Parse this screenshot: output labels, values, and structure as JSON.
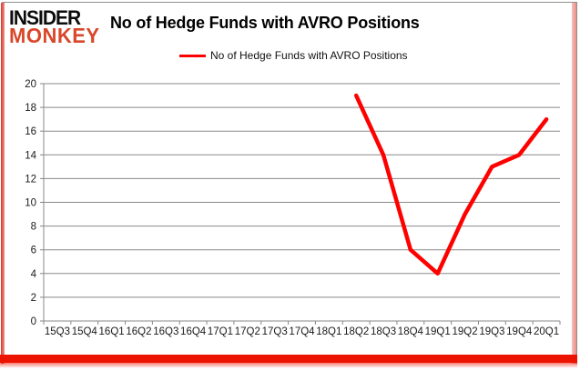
{
  "brand": {
    "line1": "INSIDER",
    "line2": "MONKEY"
  },
  "header": {
    "title": "No of Hedge Funds with AVRO Positions"
  },
  "legend": {
    "label": "No of Hedge Funds with AVRO Positions"
  },
  "colors": {
    "series_line": "#ff0000",
    "brand_accent": "#d9472b",
    "grid_line": "#898989",
    "axis_line": "#898989",
    "tick_text": "#1a1a1a",
    "border_bottom": "#ec1400"
  },
  "chart_data": {
    "type": "line",
    "title": "No of Hedge Funds with AVRO Positions",
    "xlabel": "",
    "ylabel": "",
    "categories": [
      "15Q3",
      "15Q4",
      "16Q1",
      "16Q2",
      "16Q3",
      "16Q4",
      "17Q1",
      "17Q2",
      "17Q3",
      "17Q4",
      "18Q1",
      "18Q2",
      "18Q3",
      "18Q4",
      "19Q1",
      "19Q2",
      "19Q3",
      "19Q4",
      "20Q1"
    ],
    "series": [
      {
        "name": "No of Hedge Funds with AVRO Positions",
        "values": [
          null,
          null,
          null,
          null,
          null,
          null,
          null,
          null,
          null,
          null,
          null,
          19,
          14,
          6,
          4,
          9,
          13,
          14,
          17
        ]
      }
    ],
    "ylim": [
      0,
      20
    ],
    "ytick_interval": 2,
    "grid": true,
    "legend_position": "top-center"
  }
}
